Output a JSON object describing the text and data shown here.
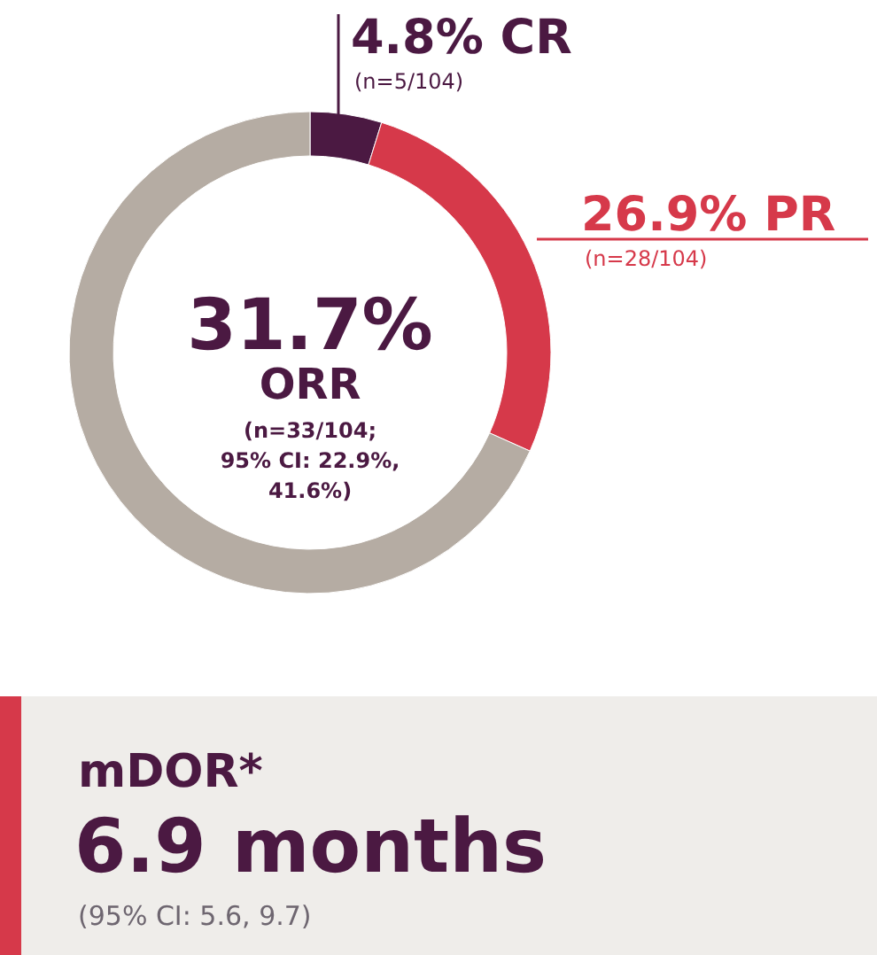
{
  "chart_data": {
    "type": "donut",
    "categories": [
      "4.8% CR",
      "26.9% PR",
      null
    ],
    "values": [
      4.8,
      26.9,
      68.3
    ],
    "colors": [
      "#4b1942",
      "#d6394a",
      "#b5aca3"
    ],
    "annotations": [
      "(n=5/104)",
      "(n=28/104)",
      "31.7%",
      "ORR",
      "(n=33/104;",
      "95% CI: 22.9%,",
      "41.6%)",
      "mDOR*",
      "6.9 months",
      "(95% CI: 5.6, 9.7)"
    ]
  }
}
